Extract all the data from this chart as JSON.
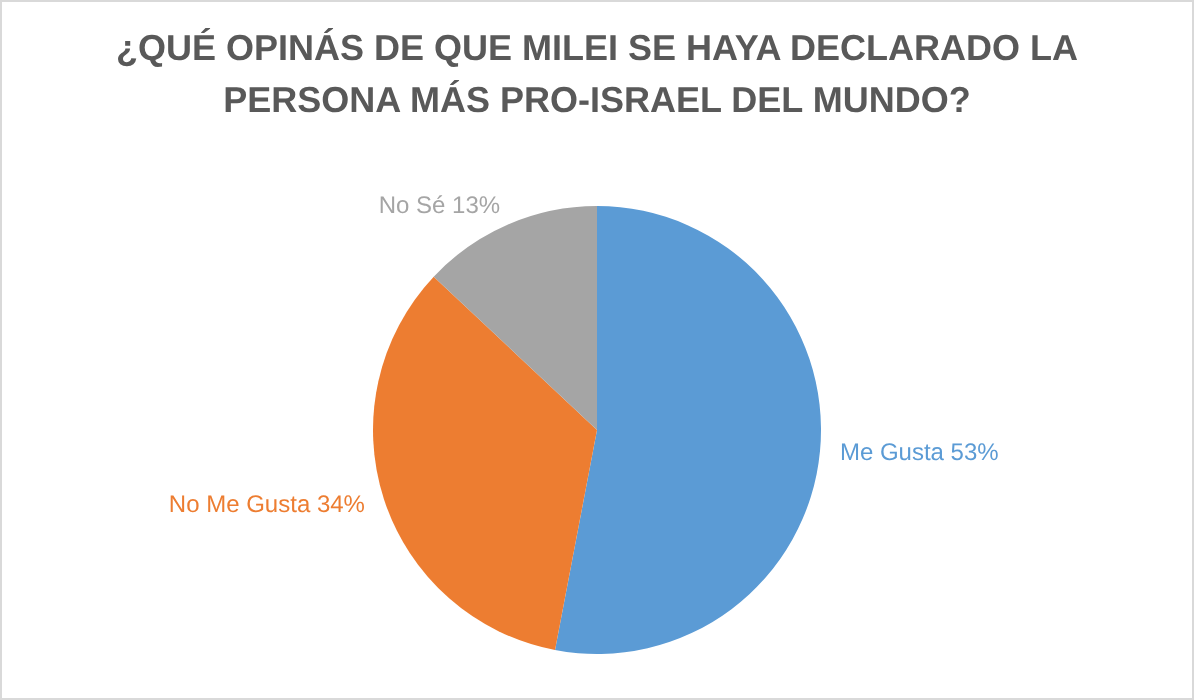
{
  "chart_data": {
    "type": "pie",
    "title": "¿QUÉ OPINÁS DE QUE MILEI SE HAYA DECLARADO LA PERSONA MÁS PRO-ISRAEL DEL MUNDO?",
    "categories": [
      "Me Gusta",
      "No Me Gusta",
      "No Sé"
    ],
    "values": [
      53,
      34,
      13
    ],
    "colors": [
      "#5b9bd5",
      "#ed7d31",
      "#a5a5a5"
    ],
    "value_labels": [
      "53%",
      "34%",
      "13%"
    ],
    "legend": false
  }
}
